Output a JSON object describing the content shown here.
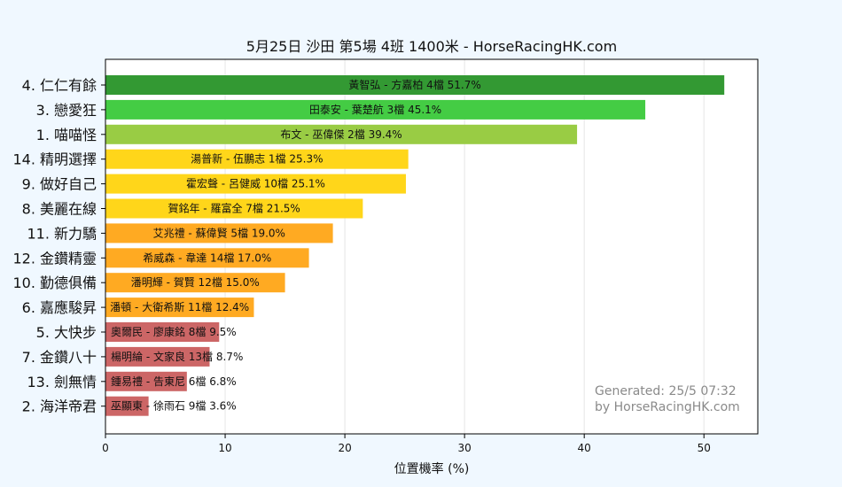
{
  "chart_data": {
    "type": "bar",
    "orientation": "horizontal",
    "title": "5月25日  沙田  第5場  4班  1400米 - HorseRacingHK.com",
    "xlabel": "位置機率 (%)",
    "ylabel": "",
    "xlim": [
      0,
      54.5
    ],
    "xticks": [
      0,
      10,
      20,
      30,
      40,
      50
    ],
    "grid": true,
    "categories": [
      "4. 仁仁有餘",
      "3. 戀愛狂",
      "1. 喵喵怪",
      "14. 精明選擇",
      "9. 做好自己",
      "8. 美麗在線",
      "11. 新力驕",
      "12. 金鑽精靈",
      "10. 勤德俱備",
      "6. 嘉應駿昇",
      "5. 大快步",
      "7. 金鑽八十",
      "13. 劍無情",
      "2. 海洋帝君"
    ],
    "values": [
      51.7,
      45.1,
      39.4,
      25.3,
      25.1,
      21.5,
      19.0,
      17.0,
      15.0,
      12.4,
      9.5,
      8.7,
      6.8,
      3.6
    ],
    "bar_labels": [
      "黃智弘 - 方嘉柏 4檔  51.7%",
      "田泰安 - 葉楚航 3檔  45.1%",
      "布文 - 巫偉傑 2檔  39.4%",
      "湯普新 - 伍鵬志 1檔  25.3%",
      "霍宏聲 - 呂健威 10檔  25.1%",
      "賀銘年 - 羅富全 7檔  21.5%",
      "艾兆禮 - 蘇偉賢 5檔  19.0%",
      "希威森 - 韋達 14檔  17.0%",
      "潘明輝 - 賀賢 12檔  15.0%",
      "潘頓 - 大衛希斯 11檔  12.4%",
      "奧爾民 - 廖康銘 8檔  9.5%",
      "楊明綸 - 文家良 13檔  8.7%",
      "鍾易禮 - 告東尼 6檔  6.8%",
      "巫顯東 - 徐雨石 9檔  3.6%"
    ],
    "colors": [
      "#339933",
      "#44cc44",
      "#99cc44",
      "#ffd61a",
      "#ffd61a",
      "#ffd61a",
      "#ffaa22",
      "#ffaa22",
      "#ffaa22",
      "#ffaa22",
      "#cc6666",
      "#cc6666",
      "#cc6666",
      "#cc6666"
    ],
    "annotation": [
      "Generated: 25/5 07:32",
      "by HorseRacingHK.com"
    ]
  }
}
